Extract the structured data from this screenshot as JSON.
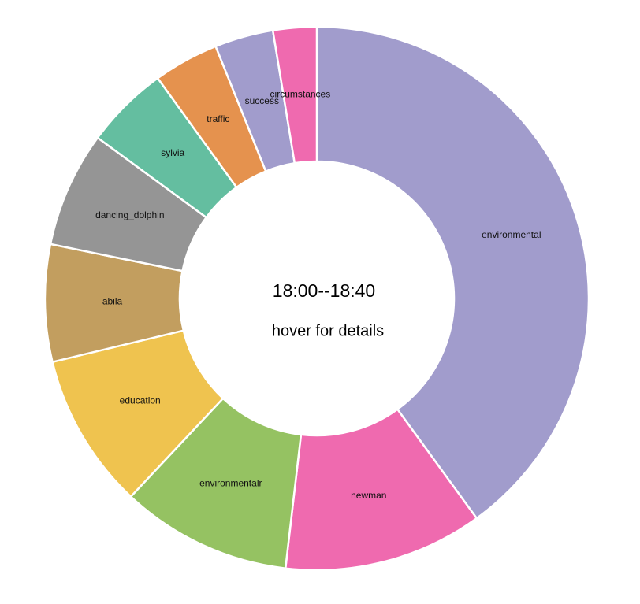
{
  "center": {
    "time_range": "18:00--18:40",
    "hint": "hover for details"
  },
  "chart_data": {
    "type": "pie",
    "donut": true,
    "categories": [
      "environmental",
      "newman",
      "environmentalr",
      "education",
      "abila",
      "dancing_dolphin",
      "sylvia",
      "traffic",
      "success",
      "circumstances"
    ],
    "values": [
      40.2,
      11.9,
      10.2,
      9.3,
      7.0,
      6.9,
      5.0,
      3.9,
      3.5,
      2.6
    ],
    "colors": [
      "#a19ccc",
      "#ef6aaf",
      "#95c262",
      "#efc34f",
      "#c29e5f",
      "#959595",
      "#64bea0",
      "#e5924e",
      "#a19ccc",
      "#ef6aaf"
    ]
  }
}
